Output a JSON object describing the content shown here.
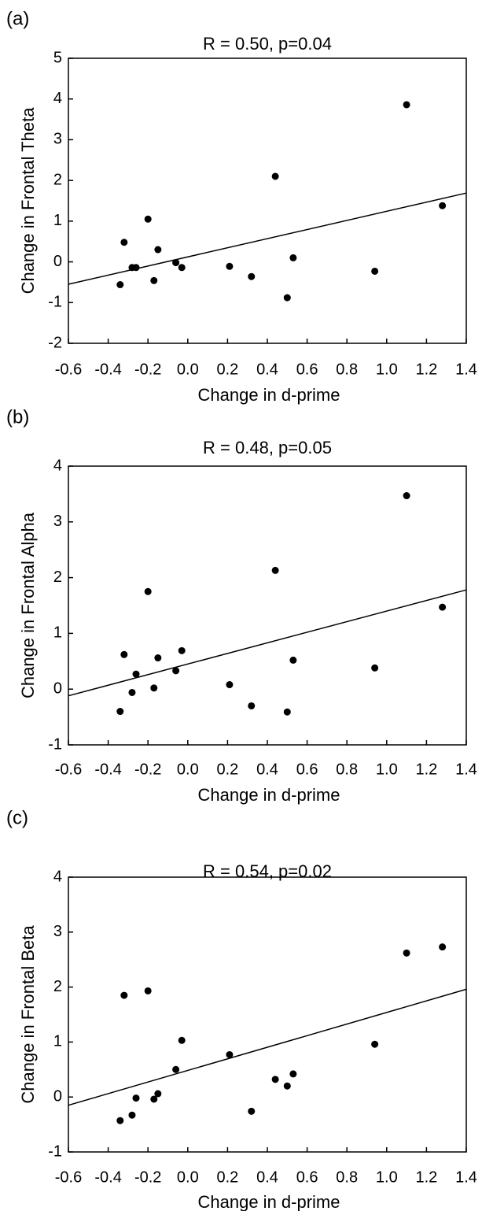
{
  "chart_data": [
    {
      "type": "scatter",
      "panel_label": "(a)",
      "title": "R = 0.50, p=0.04",
      "xlabel": "Change in d-prime",
      "ylabel": "Change in Frontal Theta",
      "xlim": [
        -0.6,
        1.4
      ],
      "ylim": [
        -2,
        5
      ],
      "xticks": [
        "-0.6",
        "-0.4",
        "-0.2",
        "0.0",
        "0.2",
        "0.4",
        "0.6",
        "0.8",
        "1.0",
        "1.2",
        "1.4"
      ],
      "yticks": [
        "-2",
        "-1",
        "0",
        "1",
        "2",
        "3",
        "4",
        "5"
      ],
      "grid": false,
      "points": [
        {
          "x": -0.34,
          "y": -0.56
        },
        {
          "x": -0.32,
          "y": 0.48
        },
        {
          "x": -0.28,
          "y": -0.14
        },
        {
          "x": -0.26,
          "y": -0.14
        },
        {
          "x": -0.2,
          "y": 1.05
        },
        {
          "x": -0.17,
          "y": -0.46
        },
        {
          "x": -0.15,
          "y": 0.3
        },
        {
          "x": -0.06,
          "y": -0.02
        },
        {
          "x": -0.03,
          "y": -0.14
        },
        {
          "x": 0.21,
          "y": -0.11
        },
        {
          "x": 0.32,
          "y": -0.36
        },
        {
          "x": 0.44,
          "y": 2.1
        },
        {
          "x": 0.5,
          "y": -0.88
        },
        {
          "x": 0.53,
          "y": 0.1
        },
        {
          "x": 0.94,
          "y": -0.23
        },
        {
          "x": 1.1,
          "y": 3.86
        },
        {
          "x": 1.28,
          "y": 1.38
        }
      ],
      "regression": {
        "x": [
          -0.6,
          1.4
        ],
        "y": [
          -0.55,
          1.69
        ]
      }
    },
    {
      "type": "scatter",
      "panel_label": "(b)",
      "title": "R = 0.48, p=0.05",
      "xlabel": "Change in d-prime",
      "ylabel": "Change in Frontal Alpha",
      "xlim": [
        -0.6,
        1.4
      ],
      "ylim": [
        -1,
        4
      ],
      "xticks": [
        "-0.6",
        "-0.4",
        "-0.2",
        "0.0",
        "0.2",
        "0.4",
        "0.6",
        "0.8",
        "1.0",
        "1.2",
        "1.4"
      ],
      "yticks": [
        "-1",
        "0",
        "1",
        "2",
        "3",
        "4"
      ],
      "grid": false,
      "points": [
        {
          "x": -0.34,
          "y": -0.4
        },
        {
          "x": -0.32,
          "y": 0.62
        },
        {
          "x": -0.28,
          "y": -0.06
        },
        {
          "x": -0.26,
          "y": 0.27
        },
        {
          "x": -0.2,
          "y": 1.75
        },
        {
          "x": -0.17,
          "y": 0.02
        },
        {
          "x": -0.15,
          "y": 0.56
        },
        {
          "x": -0.06,
          "y": 0.33
        },
        {
          "x": -0.03,
          "y": 0.69
        },
        {
          "x": 0.21,
          "y": 0.08
        },
        {
          "x": 0.32,
          "y": -0.3
        },
        {
          "x": 0.44,
          "y": 2.13
        },
        {
          "x": 0.5,
          "y": -0.41
        },
        {
          "x": 0.53,
          "y": 0.52
        },
        {
          "x": 0.94,
          "y": 0.38
        },
        {
          "x": 1.1,
          "y": 3.47
        },
        {
          "x": 1.28,
          "y": 1.47
        }
      ],
      "regression": {
        "x": [
          -0.6,
          1.4
        ],
        "y": [
          -0.12,
          1.78
        ]
      }
    },
    {
      "type": "scatter",
      "panel_label": "(c)",
      "title": "R = 0.54, p=0.02",
      "xlabel": "Change in d-prime",
      "ylabel": "Change in Frontal Beta",
      "xlim": [
        -0.6,
        1.4
      ],
      "ylim": [
        -1,
        4
      ],
      "xticks": [
        "-0.6",
        "-0.4",
        "-0.2",
        "0.0",
        "0.2",
        "0.4",
        "0.6",
        "0.8",
        "1.0",
        "1.2",
        "1.4"
      ],
      "yticks": [
        "-1",
        "0",
        "1",
        "2",
        "3",
        "4"
      ],
      "grid": false,
      "points": [
        {
          "x": -0.34,
          "y": -0.43
        },
        {
          "x": -0.32,
          "y": 1.85
        },
        {
          "x": -0.28,
          "y": -0.33
        },
        {
          "x": -0.26,
          "y": -0.02
        },
        {
          "x": -0.2,
          "y": 1.93
        },
        {
          "x": -0.17,
          "y": -0.04
        },
        {
          "x": -0.15,
          "y": 0.06
        },
        {
          "x": -0.06,
          "y": 0.5
        },
        {
          "x": -0.03,
          "y": 1.03
        },
        {
          "x": 0.21,
          "y": 0.77
        },
        {
          "x": 0.32,
          "y": -0.26
        },
        {
          "x": 0.44,
          "y": 0.32
        },
        {
          "x": 0.5,
          "y": 0.2
        },
        {
          "x": 0.53,
          "y": 0.42
        },
        {
          "x": 0.94,
          "y": 0.96
        },
        {
          "x": 1.1,
          "y": 2.62
        },
        {
          "x": 1.28,
          "y": 2.73
        }
      ],
      "regression": {
        "x": [
          -0.6,
          1.4
        ],
        "y": [
          -0.15,
          1.96
        ]
      }
    }
  ]
}
